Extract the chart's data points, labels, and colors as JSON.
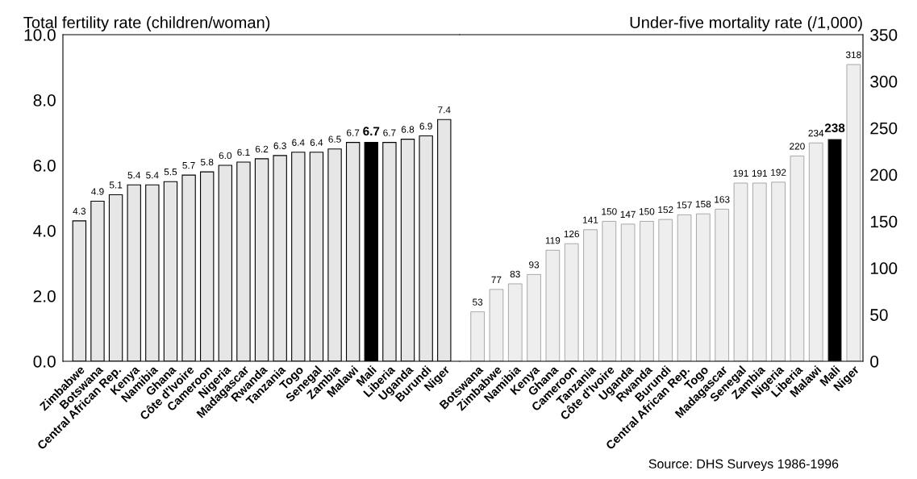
{
  "chart_data": [
    {
      "type": "bar",
      "ylabel": "Total fertility rate (children/woman)",
      "categories": [
        "Zimbabwe",
        "Botswana",
        "Central African Rep.",
        "Kenya",
        "Namibia",
        "Ghana",
        "Côte d'Ivoire",
        "Cameroon",
        "Nigeria",
        "Madagascar",
        "Rwanda",
        "Tanzania",
        "Togo",
        "Senegal",
        "Zambia",
        "Malawi",
        "Mali",
        "Liberia",
        "Uganda",
        "Burundi",
        "Niger"
      ],
      "values": [
        4.3,
        4.9,
        5.1,
        5.4,
        5.4,
        5.5,
        5.7,
        5.8,
        6.0,
        6.1,
        6.2,
        6.3,
        6.4,
        6.4,
        6.5,
        6.7,
        6.7,
        6.7,
        6.8,
        6.9,
        7.4
      ],
      "colors": [
        "#e6e6e6",
        "#e6e6e6",
        "#e6e6e6",
        "#e6e6e6",
        "#e6e6e6",
        "#e6e6e6",
        "#e6e6e6",
        "#e6e6e6",
        "#e6e6e6",
        "#e6e6e6",
        "#e6e6e6",
        "#e6e6e6",
        "#e6e6e6",
        "#e6e6e6",
        "#e6e6e6",
        "#e6e6e6",
        "#000000",
        "#e6e6e6",
        "#e6e6e6",
        "#e6e6e6",
        "#e6e6e6"
      ],
      "value_labels": [
        "4.3",
        "4.9",
        "5.1",
        "5.4",
        "5.4",
        "5.5",
        "5.7",
        "5.8",
        "6.0",
        "6.1",
        "6.2",
        "6.3",
        "6.4",
        "6.4",
        "6.5",
        "6.7",
        "6.7",
        "6.7",
        "6.8",
        "6.9",
        "7.4"
      ],
      "ylim": [
        0,
        10
      ],
      "yticks": [
        {
          "value": 0,
          "label": "0.0"
        },
        {
          "value": 2,
          "label": "2.0"
        },
        {
          "value": 4,
          "label": "4.0"
        },
        {
          "value": 6,
          "label": "6.0"
        },
        {
          "value": 8,
          "label": "8.0"
        },
        {
          "value": 10,
          "label": "10.0"
        }
      ],
      "grid": false,
      "legend": false
    },
    {
      "type": "bar",
      "ylabel": "Under-five mortality rate (/1,000)",
      "categories": [
        "Botswana",
        "Zimbabwe",
        "Namibia",
        "Kenya",
        "Ghana",
        "Cameroon",
        "Tanzania",
        "Côte d'Ivoire",
        "Uganda",
        "Rwanda",
        "Burundi",
        "Central African Rep.",
        "Togo",
        "Madagascar",
        "Senegal",
        "Zambia",
        "Nigeria",
        "Liberia",
        "Malawi",
        "Mali",
        "Niger"
      ],
      "values": [
        53,
        77,
        83,
        93,
        119,
        126,
        141,
        150,
        147,
        150,
        152,
        157,
        158,
        163,
        191,
        191,
        192,
        220,
        234,
        238,
        318
      ],
      "colors": [
        "#eeeeee",
        "#eeeeee",
        "#eeeeee",
        "#eeeeee",
        "#eeeeee",
        "#eeeeee",
        "#eeeeee",
        "#eeeeee",
        "#eeeeee",
        "#eeeeee",
        "#eeeeee",
        "#eeeeee",
        "#eeeeee",
        "#eeeeee",
        "#eeeeee",
        "#eeeeee",
        "#eeeeee",
        "#eeeeee",
        "#eeeeee",
        "#000000",
        "#eeeeee"
      ],
      "value_labels": [
        "53",
        "77",
        "83",
        "93",
        "119",
        "126",
        "141",
        "150",
        "147",
        "150",
        "152",
        "157",
        "158",
        "163",
        "191",
        "191",
        "192",
        "220",
        "234",
        "238",
        "318"
      ],
      "ylim": [
        0,
        350
      ],
      "yticks": [
        0,
        50,
        100,
        150,
        200,
        250,
        300,
        350
      ],
      "grid": false,
      "legend": false,
      "annotations": [
        "Source: DHS Surveys 1986-1996"
      ]
    }
  ]
}
